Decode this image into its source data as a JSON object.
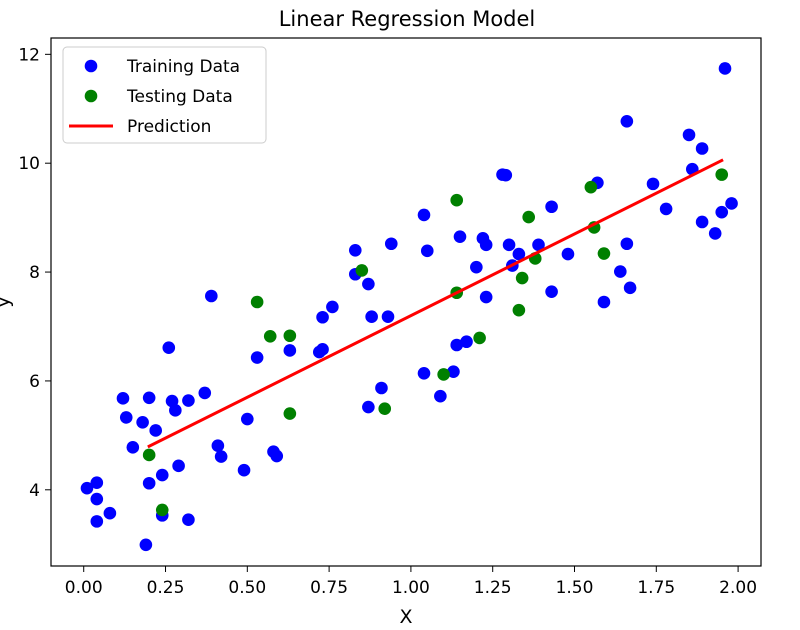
{
  "chart_data": {
    "type": "scatter",
    "title": "Linear Regression Model",
    "xlabel": "X",
    "ylabel": "y",
    "xlim": [
      -0.1,
      2.07
    ],
    "ylim": [
      2.6,
      12.3
    ],
    "xticks": [
      0.0,
      0.25,
      0.5,
      0.75,
      1.0,
      1.25,
      1.5,
      1.75,
      2.0
    ],
    "xtick_labels": [
      "0.00",
      "0.25",
      "0.50",
      "0.75",
      "1.00",
      "1.25",
      "1.50",
      "1.75",
      "2.00"
    ],
    "yticks": [
      4,
      6,
      8,
      10,
      12
    ],
    "ytick_labels": [
      "4",
      "6",
      "8",
      "10",
      "12"
    ],
    "grid": false,
    "legend_position": "top-left",
    "series": [
      {
        "name": "Training Data",
        "kind": "scatter",
        "color": "#0000ff",
        "x": [
          0.01,
          0.04,
          0.04,
          0.04,
          0.08,
          0.12,
          0.13,
          0.15,
          0.18,
          0.19,
          0.2,
          0.2,
          0.22,
          0.24,
          0.24,
          0.26,
          0.27,
          0.28,
          0.29,
          0.32,
          0.32,
          0.37,
          0.39,
          0.41,
          0.42,
          0.49,
          0.5,
          0.53,
          0.58,
          0.59,
          0.63,
          0.72,
          0.73,
          0.73,
          0.76,
          0.83,
          0.83,
          0.87,
          0.87,
          0.88,
          0.91,
          0.93,
          0.94,
          1.04,
          1.04,
          1.05,
          1.09,
          1.13,
          1.14,
          1.15,
          1.17,
          1.2,
          1.22,
          1.23,
          1.23,
          1.28,
          1.29,
          1.3,
          1.31,
          1.33,
          1.39,
          1.43,
          1.43,
          1.48,
          1.57,
          1.59,
          1.64,
          1.66,
          1.66,
          1.67,
          1.74,
          1.78,
          1.85,
          1.86,
          1.89,
          1.89,
          1.93,
          1.95,
          1.96,
          1.98
        ],
        "y": [
          4.03,
          3.83,
          4.13,
          3.42,
          3.57,
          5.68,
          5.33,
          4.78,
          5.24,
          2.99,
          5.69,
          4.12,
          5.09,
          4.27,
          3.53,
          6.61,
          5.63,
          5.46,
          4.44,
          5.64,
          3.45,
          5.78,
          7.56,
          4.81,
          4.61,
          4.36,
          5.3,
          6.43,
          4.7,
          4.62,
          6.56,
          6.53,
          6.58,
          7.17,
          7.36,
          7.96,
          8.4,
          7.78,
          5.52,
          7.18,
          5.87,
          7.18,
          8.52,
          6.14,
          9.05,
          8.39,
          5.72,
          6.17,
          6.66,
          8.65,
          6.72,
          8.09,
          8.62,
          8.5,
          7.54,
          9.79,
          9.78,
          8.5,
          8.12,
          8.33,
          8.5,
          9.2,
          7.64,
          8.33,
          9.64,
          7.45,
          8.01,
          8.52,
          10.77,
          7.71,
          9.62,
          9.16,
          10.52,
          9.89,
          8.92,
          10.27,
          8.71,
          9.1,
          11.74,
          9.26
        ]
      },
      {
        "name": "Testing Data",
        "kind": "scatter",
        "color": "#008000",
        "x": [
          0.2,
          0.24,
          0.53,
          0.57,
          0.63,
          0.63,
          0.85,
          0.92,
          1.1,
          1.14,
          1.14,
          1.21,
          1.33,
          1.34,
          1.36,
          1.38,
          1.55,
          1.56,
          1.59,
          1.95
        ],
        "y": [
          4.64,
          3.63,
          7.45,
          6.82,
          6.83,
          5.4,
          8.03,
          5.49,
          6.12,
          7.62,
          9.32,
          6.79,
          7.3,
          7.89,
          9.01,
          8.25,
          9.56,
          8.82,
          8.34,
          9.79
        ]
      },
      {
        "name": "Prediction",
        "kind": "line",
        "color": "#ff0000",
        "x": [
          0.2,
          1.95
        ],
        "y": [
          4.8,
          10.05
        ]
      }
    ]
  }
}
